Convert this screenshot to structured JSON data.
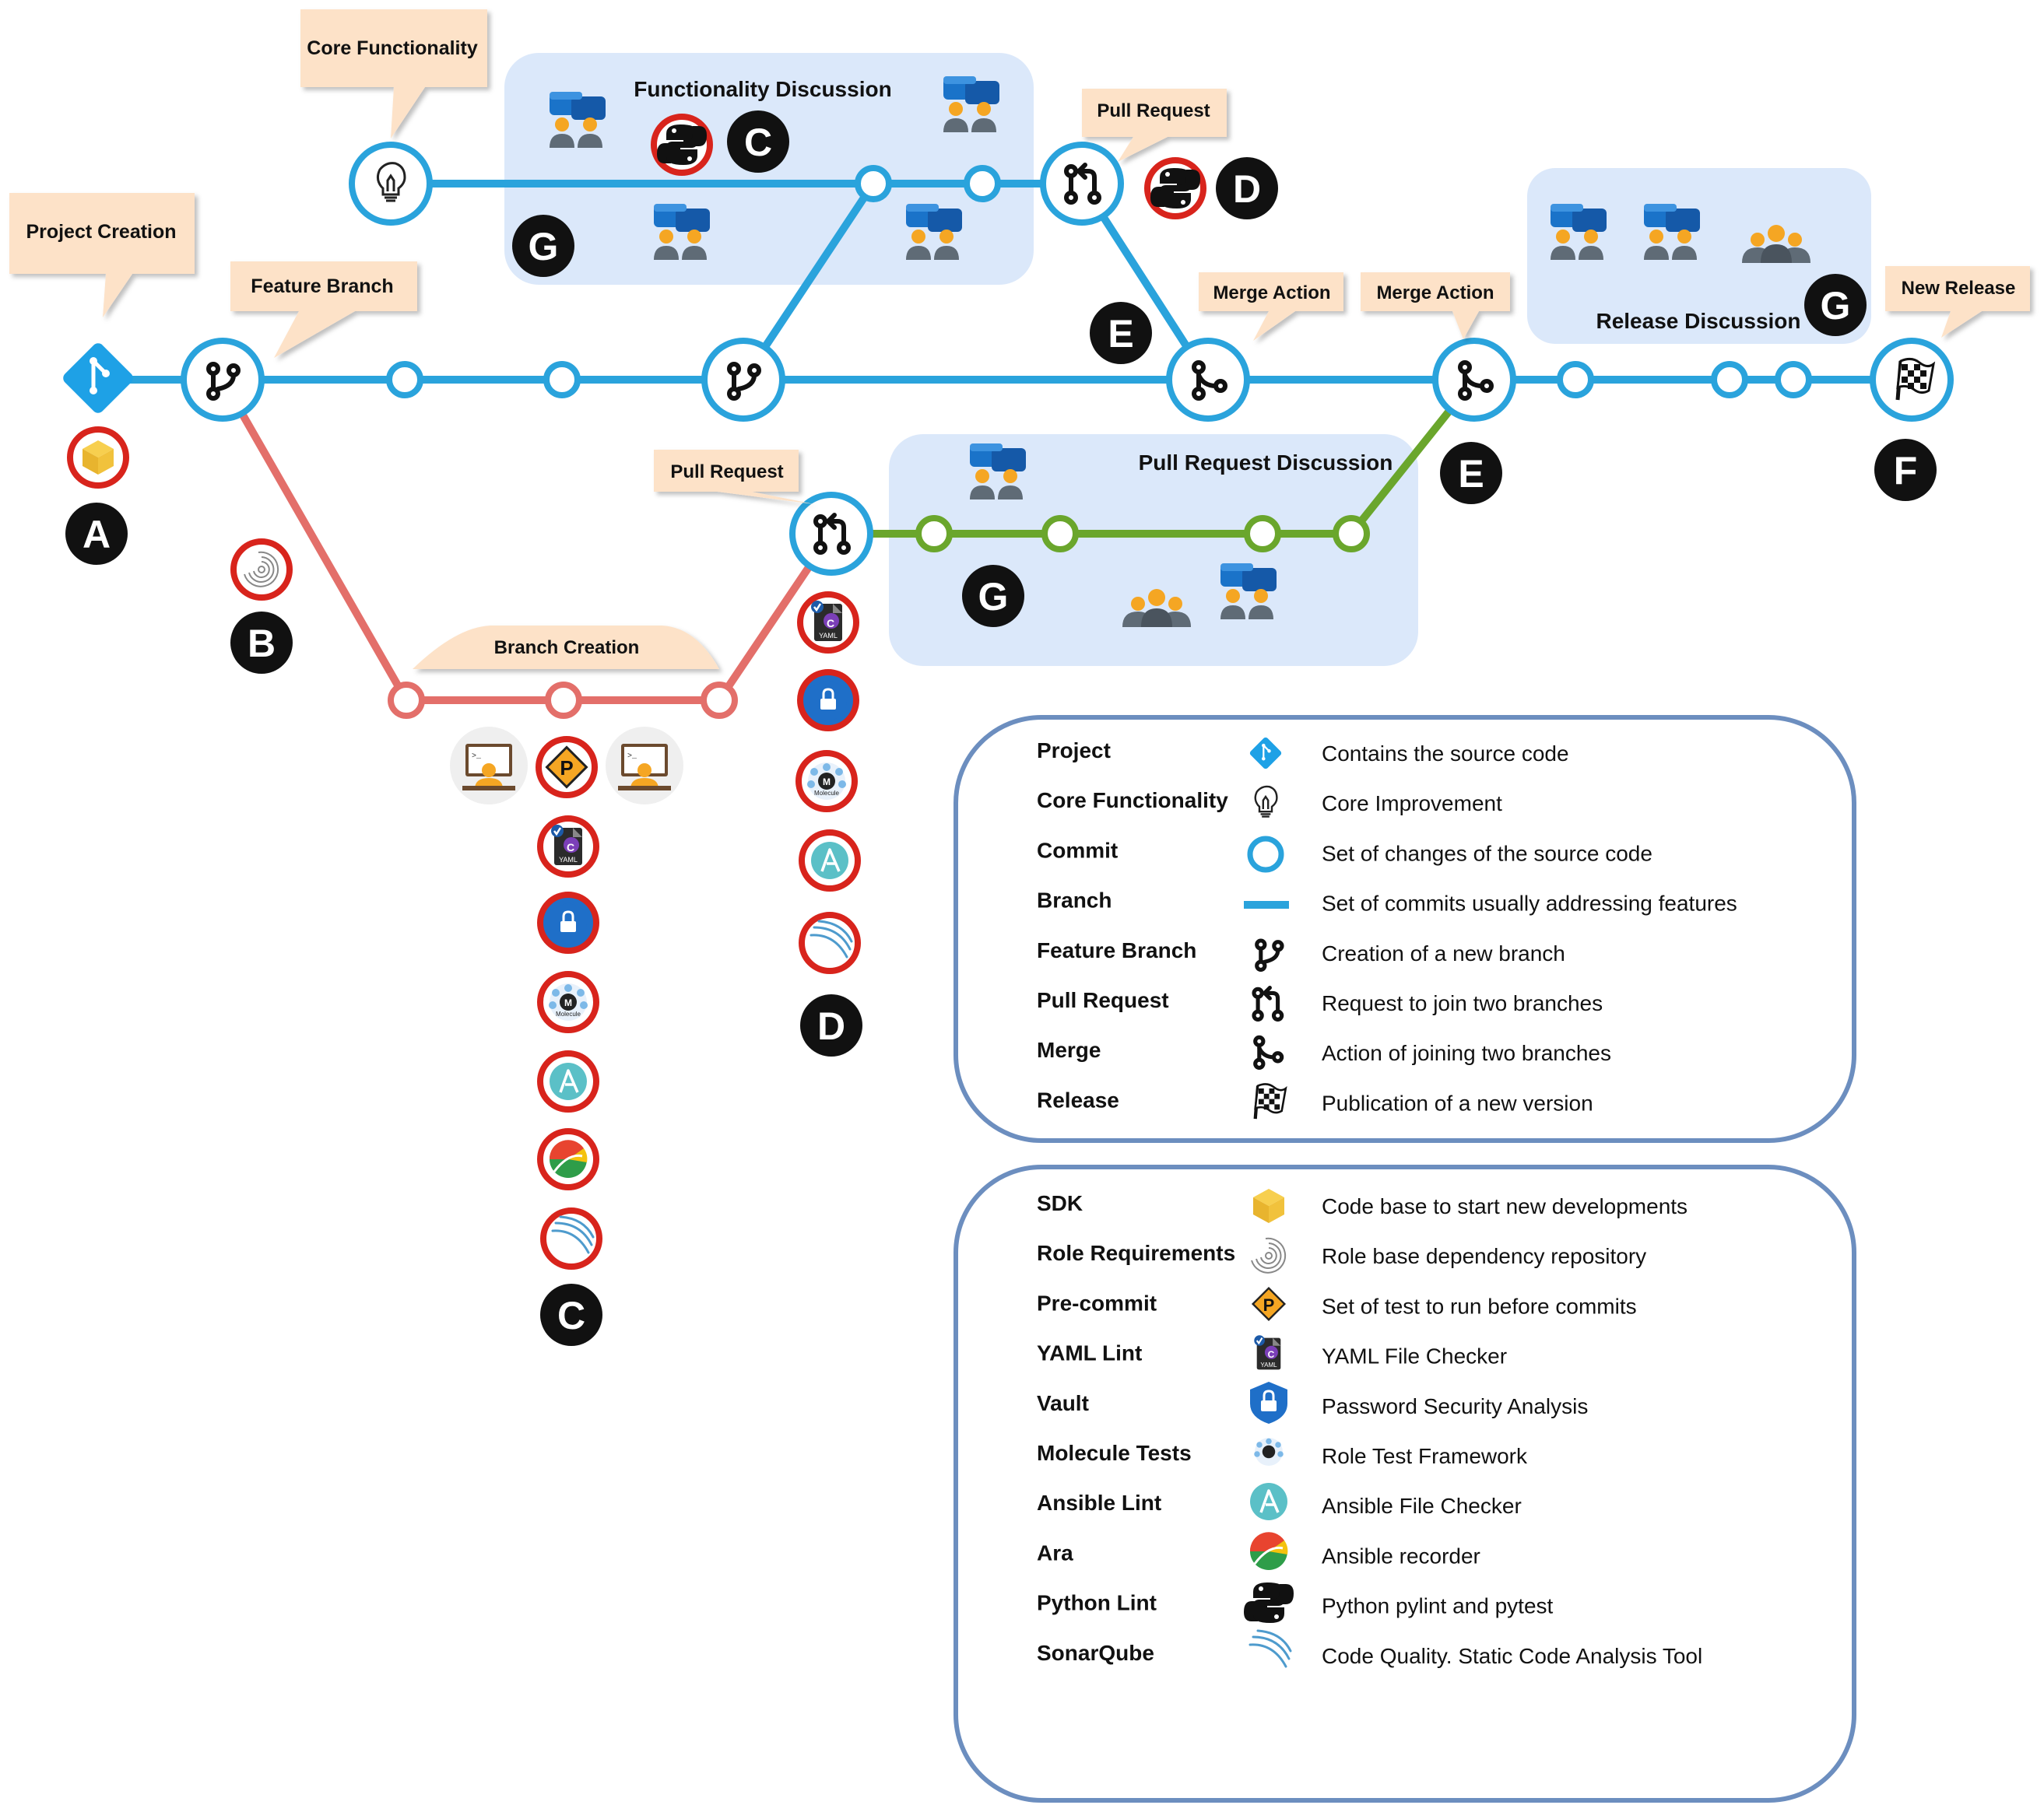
{
  "callouts": {
    "core_functionality": "Core Functionality",
    "project_creation": "Project Creation",
    "feature_branch": "Feature Branch",
    "pull_request_top": "Pull Request",
    "merge_action_1": "Merge Action",
    "merge_action_2": "Merge Action",
    "new_release": "New Release",
    "pull_request_bottom": "Pull Request",
    "branch_creation": "Branch Creation"
  },
  "discussions": {
    "functionality": "Functionality Discussion",
    "pull_request": "Pull Request Discussion",
    "release": "Release Discussion"
  },
  "markers": {
    "A": "A",
    "B": "B",
    "C": "C",
    "D": "D",
    "E": "E",
    "F": "F",
    "G": "G"
  },
  "legend_workflow": [
    {
      "term": "Project",
      "icon": "git-project-icon",
      "desc": "Contains the source code"
    },
    {
      "term": "Core Functionality",
      "icon": "lightbulb-icon",
      "desc": "Core Improvement"
    },
    {
      "term": "Commit",
      "icon": "commit-circle-icon",
      "desc": "Set of changes of the source code"
    },
    {
      "term": "Branch",
      "icon": "branch-line-icon",
      "desc": "Set of commits usually addressing features"
    },
    {
      "term": "Feature Branch",
      "icon": "git-branch-icon",
      "desc": "Creation of a new branch"
    },
    {
      "term": "Pull Request",
      "icon": "pull-request-icon",
      "desc": "Request to join two branches"
    },
    {
      "term": "Merge",
      "icon": "merge-icon",
      "desc": "Action of joining two branches"
    },
    {
      "term": "Release",
      "icon": "checkered-flag-icon",
      "desc": "Publication of a new version"
    }
  ],
  "legend_tools": [
    {
      "term": "SDK",
      "icon": "sdk-cube-icon",
      "desc": "Code base to start new developments"
    },
    {
      "term": "Role Requirements",
      "icon": "galaxy-icon",
      "desc": "Role base dependency repository"
    },
    {
      "term": "Pre-commit",
      "icon": "pre-commit-icon",
      "desc": "Set of test to run before commits"
    },
    {
      "term": "YAML Lint",
      "icon": "yaml-lint-icon",
      "desc": "YAML File Checker"
    },
    {
      "term": "Vault",
      "icon": "vault-icon",
      "desc": "Password Security Analysis"
    },
    {
      "term": "Molecule Tests",
      "icon": "molecule-icon",
      "desc": "Role Test Framework"
    },
    {
      "term": "Ansible Lint",
      "icon": "ansible-icon",
      "desc": "Ansible File Checker"
    },
    {
      "term": "Ara",
      "icon": "ara-icon",
      "desc": "Ansible recorder"
    },
    {
      "term": "Python Lint",
      "icon": "python-icon",
      "desc": "Python pylint and pytest"
    },
    {
      "term": "SonarQube",
      "icon": "sonarqube-icon",
      "desc": "Code Quality. Static Code Analysis Tool"
    }
  ],
  "icon_text": {
    "yaml": "YAML",
    "molecule": "Molecule",
    "m": "M",
    "c": "C",
    "p": "P",
    "a": "A"
  },
  "colors": {
    "main_branch": "#2aa3dc",
    "feature_branch": "#e36f6a",
    "pr_branch": "#6aa62c",
    "discussion_bg": "#dbe8fa",
    "callout_bg": "#fde2c8",
    "legend_border": "#6c8ebf",
    "tool_ring": "#d8241c"
  }
}
